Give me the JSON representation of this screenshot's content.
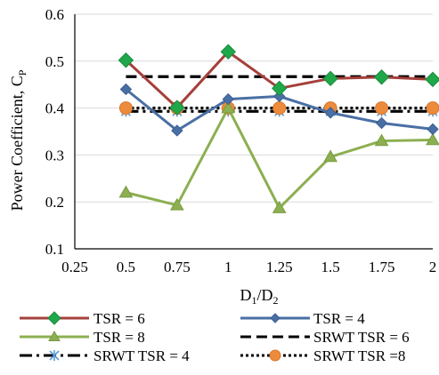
{
  "chart_data": {
    "type": "line",
    "xlabel_main": "D",
    "xlabel_sub1": "1",
    "xlabel_sep": "/D",
    "xlabel_sub2": "2",
    "ylabel_main": "Power Coefficient, C",
    "ylabel_sub": "P",
    "xlim": [
      0.25,
      2
    ],
    "ylim": [
      0.1,
      0.6
    ],
    "x_ticks": [
      "0.25",
      "0.5",
      "0.75",
      "1",
      "1.25",
      "1.5",
      "1.75",
      "2"
    ],
    "y_ticks": [
      "0.1",
      "0.2",
      "0.3",
      "0.4",
      "0.5",
      "0.6"
    ],
    "x": [
      0.5,
      0.75,
      1,
      1.25,
      1.5,
      1.75,
      2
    ],
    "grid": "horizontal",
    "legend_position": "bottom",
    "series": [
      {
        "name": "TSR = 6",
        "values": [
          0.502,
          0.401,
          0.52,
          0.442,
          0.463,
          0.466,
          0.461
        ],
        "color": "#A5403B",
        "marker": "diamond-green",
        "line": "solid"
      },
      {
        "name": "TSR = 4",
        "values": [
          0.44,
          0.352,
          0.419,
          0.425,
          0.39,
          0.368,
          0.355
        ],
        "color": "#4A6FA5",
        "marker": "diamond-blue",
        "line": "solid"
      },
      {
        "name": "TSR = 8",
        "values": [
          0.22,
          0.193,
          0.4,
          0.187,
          0.296,
          0.33,
          0.332
        ],
        "color": "#8CAF50",
        "marker": "triangle",
        "line": "solid"
      },
      {
        "name": "SRWT TSR = 6",
        "values": [
          0.467,
          0.467,
          0.467,
          0.467,
          0.467,
          0.467,
          0.467
        ],
        "color": "#000000",
        "marker": "none",
        "line": "dashed"
      },
      {
        "name": "SRWT TSR = 4",
        "values": [
          0.393,
          0.393,
          0.393,
          0.393,
          0.393,
          0.393,
          0.393
        ],
        "color": "#000000",
        "marker": "star",
        "line": "dashdot"
      },
      {
        "name": "SRWT TSR =8",
        "values": [
          0.4,
          0.4,
          0.4,
          0.4,
          0.4,
          0.4,
          0.4
        ],
        "color": "#000000",
        "marker": "circle-orange",
        "line": "dotted"
      }
    ]
  }
}
